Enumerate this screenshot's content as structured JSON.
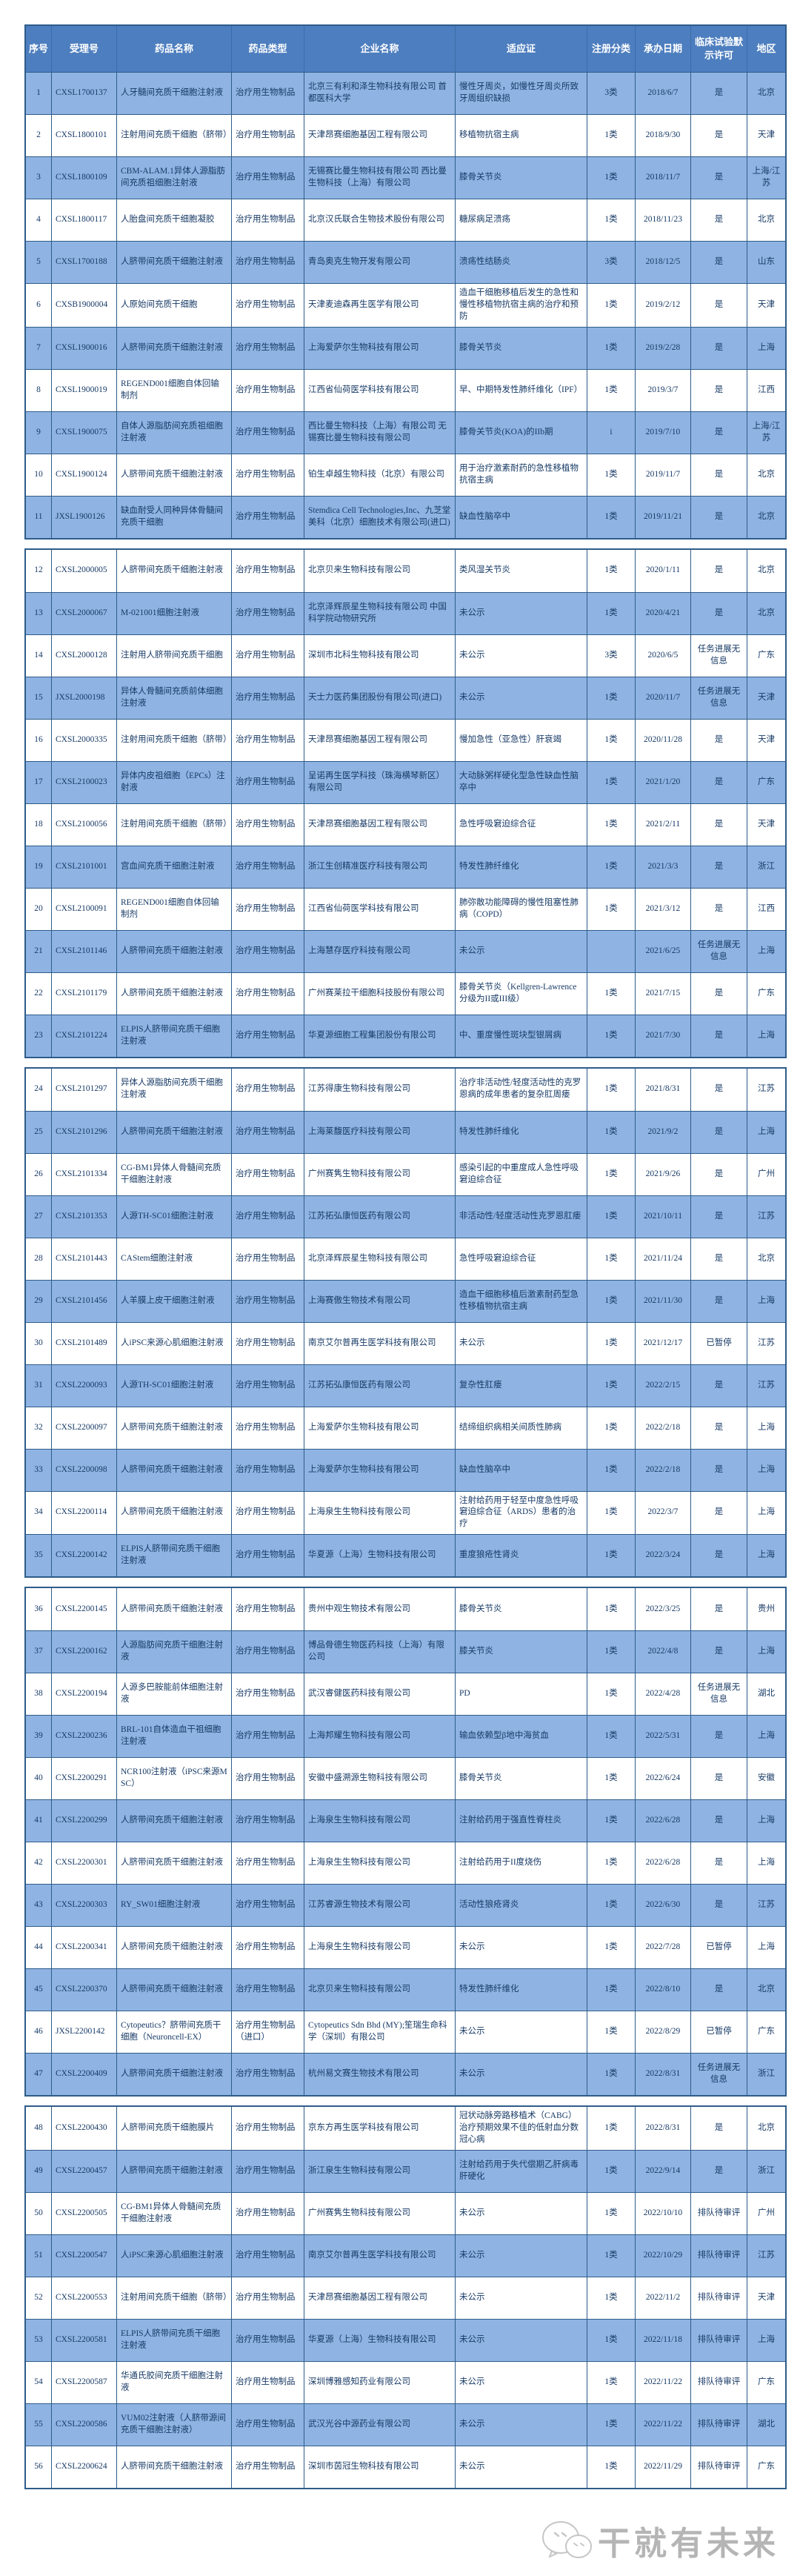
{
  "table": {
    "columns": [
      "序号",
      "受理号",
      "药品名称",
      "药品类型",
      "企业名称",
      "适应证",
      "注册分类",
      "承办日期",
      "临床试验默示许可",
      "地区"
    ],
    "page_breaks_after": [
      11,
      23,
      35,
      47
    ],
    "colors": {
      "header_bg": "#4d7ebf",
      "header_text": "#ffffff",
      "alt_row_bg": "#8fb4e3",
      "border": "#2e5c8a",
      "text": "#173a66"
    },
    "rows": [
      {
        "index": "1",
        "acceptance_no": "CXSL1700137",
        "drug_name": "人牙髓间充质干细胞注射液",
        "drug_type": "治疗用生物制品",
        "company": "北京三有利和泽生物科技有限公司 首都医科大学",
        "indication": "慢性牙周炎，如慢性牙周炎所致牙周组织缺损",
        "reg_class": "3类",
        "date": "2018/6/7",
        "permission": "是",
        "region": "北京"
      },
      {
        "index": "2",
        "acceptance_no": "CXSL1800101",
        "drug_name": "注射用间充质干细胞（脐带）",
        "drug_type": "治疗用生物制品",
        "company": "天津昂赛细胞基因工程有限公司",
        "indication": "移植物抗宿主病",
        "reg_class": "1类",
        "date": "2018/9/30",
        "permission": "是",
        "region": "天津"
      },
      {
        "index": "3",
        "acceptance_no": "CXSL1800109",
        "drug_name": "CBM-ALAM.1异体人源脂肪间充质祖细胞注射液",
        "drug_type": "治疗用生物制品",
        "company": "无锡赛比曼生物科技有限公司 西比曼生物科技（上海）有限公司",
        "indication": "膝骨关节炎",
        "reg_class": "1类",
        "date": "2018/11/7",
        "permission": "是",
        "region": "上海/江苏"
      },
      {
        "index": "4",
        "acceptance_no": "CXSL1800117",
        "drug_name": "人胎盘间充质干细胞凝胶",
        "drug_type": "治疗用生物制品",
        "company": "北京汉氏联合生物技术股份有限公司",
        "indication": "糖尿病足溃疡",
        "reg_class": "1类",
        "date": "2018/11/23",
        "permission": "是",
        "region": "北京"
      },
      {
        "index": "5",
        "acceptance_no": "CXSL1700188",
        "drug_name": "人脐带间充质干细胞注射液",
        "drug_type": "治疗用生物制品",
        "company": "青岛奥克生物开发有限公司",
        "indication": "溃疡性结肠炎",
        "reg_class": "3类",
        "date": "2018/12/5",
        "permission": "是",
        "region": "山东"
      },
      {
        "index": "6",
        "acceptance_no": "CXSB1900004",
        "drug_name": "人原始间充质干细胞",
        "drug_type": "治疗用生物制品",
        "company": "天津麦迪森再生医学有限公司",
        "indication": "造血干细胞移植后发生的急性和慢性移植物抗宿主病的治疗和预防",
        "reg_class": "1类",
        "date": "2019/2/12",
        "permission": "是",
        "region": "天津"
      },
      {
        "index": "7",
        "acceptance_no": "CXSL1900016",
        "drug_name": "人脐带间充质干细胞注射液",
        "drug_type": "治疗用生物制品",
        "company": "上海爱萨尔生物科技有限公司",
        "indication": "膝骨关节炎",
        "reg_class": "1类",
        "date": "2019/2/28",
        "permission": "是",
        "region": "上海"
      },
      {
        "index": "8",
        "acceptance_no": "CXSL1900019",
        "drug_name": "REGEND001细胞自体回输制剂",
        "drug_type": "治疗用生物制品",
        "company": "江西省仙荷医学科技有限公司",
        "indication": "早、中期特发性肺纤维化（IPF）",
        "reg_class": "1类",
        "date": "2019/3/7",
        "permission": "是",
        "region": "江西"
      },
      {
        "index": "9",
        "acceptance_no": "CXSL1900075",
        "drug_name": "自体人源脂肪间充质祖细胞注射液",
        "drug_type": "治疗用生物制品",
        "company": "西比曼生物科技（上海）有限公司 无锡赛比曼生物科技有限公司",
        "indication": "膝骨关节炎(KOA)的IIb期",
        "reg_class": "i",
        "date": "2019/7/10",
        "permission": "是",
        "region": "上海/江苏"
      },
      {
        "index": "10",
        "acceptance_no": "CXSL1900124",
        "drug_name": "人脐带间充质干细胞注射液",
        "drug_type": "治疗用生物制品",
        "company": "铂生卓越生物科技（北京）有限公司",
        "indication": "用于治疗激素耐药的急性移植物抗宿主病",
        "reg_class": "1类",
        "date": "2019/11/7",
        "permission": "是",
        "region": "北京"
      },
      {
        "index": "11",
        "acceptance_no": "JXSL1900126",
        "drug_name": "缺血耐受人同种异体骨髓间充质干细胞",
        "drug_type": "治疗用生物制品",
        "company": "Stemdica Cell Technologies,Inc、九芝堂美科（北京）细胞技术有限公司(进口)",
        "indication": "缺血性脑卒中",
        "reg_class": "1类",
        "date": "2019/11/21",
        "permission": "是",
        "region": "北京"
      },
      {
        "index": "12",
        "acceptance_no": "CXSL2000005",
        "drug_name": "人脐带间充质干细胞注射液",
        "drug_type": "治疗用生物制品",
        "company": "北京贝来生物科技有限公司",
        "indication": "类风湿关节炎",
        "reg_class": "1类",
        "date": "2020/1/11",
        "permission": "是",
        "region": "北京"
      },
      {
        "index": "13",
        "acceptance_no": "CXSL2000067",
        "drug_name": "M-021001细胞注射液",
        "drug_type": "治疗用生物制品",
        "company": "北京泽辉辰星生物科技有限公司 中国科学院动物研究所",
        "indication": "未公示",
        "reg_class": "1类",
        "date": "2020/4/21",
        "permission": "是",
        "region": "北京"
      },
      {
        "index": "14",
        "acceptance_no": "CXSL2000128",
        "drug_name": "注射用人脐带间充质干细胞",
        "drug_type": "治疗用生物制品",
        "company": "深圳市北科生物科技有限公司",
        "indication": "未公示",
        "reg_class": "3类",
        "date": "2020/6/5",
        "permission": "任务进展无信息",
        "region": "广东"
      },
      {
        "index": "15",
        "acceptance_no": "JXSL2000198",
        "drug_name": "异体人骨髓间充质前体细胞注射液",
        "drug_type": "治疗用生物制品",
        "company": "天士力医药集团股份有限公司(进口)",
        "indication": "未公示",
        "reg_class": "1类",
        "date": "2020/11/7",
        "permission": "任务进展无信息",
        "region": "天津"
      },
      {
        "index": "16",
        "acceptance_no": "CXSL2000335",
        "drug_name": "注射用间充质干细胞（脐带）",
        "drug_type": "治疗用生物制品",
        "company": "天津昂赛细胞基因工程有限公司",
        "indication": "慢加急性（亚急性）肝衰竭",
        "reg_class": "1类",
        "date": "2020/11/28",
        "permission": "是",
        "region": "天津"
      },
      {
        "index": "17",
        "acceptance_no": "CXSL2100023",
        "drug_name": "异体内皮祖细胞（EPCs）注射液",
        "drug_type": "治疗用生物制品",
        "company": "呈诺再生医学科技（珠海横琴新区）有限公司",
        "indication": "大动脉粥样硬化型急性缺血性脑卒中",
        "reg_class": "1类",
        "date": "2021/1/20",
        "permission": "是",
        "region": "广东"
      },
      {
        "index": "18",
        "acceptance_no": "CXSL2100056",
        "drug_name": "注射用间充质干细胞（脐带）",
        "drug_type": "治疗用生物制品",
        "company": "天津昂赛细胞基因工程有限公司",
        "indication": "急性呼吸窘迫综合征",
        "reg_class": "1类",
        "date": "2021/2/11",
        "permission": "是",
        "region": "天津"
      },
      {
        "index": "19",
        "acceptance_no": "CXSL2101001",
        "drug_name": "宫血间充质干细胞注射液",
        "drug_type": "治疗用生物制品",
        "company": "浙江生创精准医疗科技有限公司",
        "indication": "特发性肺纤维化",
        "reg_class": "1类",
        "date": "2021/3/3",
        "permission": "是",
        "region": "浙江"
      },
      {
        "index": "20",
        "acceptance_no": "CXSL2100091",
        "drug_name": "REGEND001细胞自体回输制剂",
        "drug_type": "治疗用生物制品",
        "company": "江西省仙荷医学科技有限公司",
        "indication": "肺弥散功能障碍的慢性阻塞性肺病（COPD）",
        "reg_class": "1类",
        "date": "2021/3/12",
        "permission": "是",
        "region": "江西"
      },
      {
        "index": "21",
        "acceptance_no": "CXSL2101146",
        "drug_name": "人脐带间充质干细胞注射液",
        "drug_type": "治疗用生物制品",
        "company": "上海慧存医疗科技有限公司",
        "indication": "未公示",
        "reg_class": "",
        "date": "2021/6/25",
        "permission": "任务进展无信息",
        "region": "上海"
      },
      {
        "index": "22",
        "acceptance_no": "CXSL2101179",
        "drug_name": "人脐带间充质干细胞注射液",
        "drug_type": "治疗用生物制品",
        "company": "广州赛莱拉干细胞科技股份有限公司",
        "indication": "膝骨关节炎（Kellgren-Lawrence分级为II或III级）",
        "reg_class": "1类",
        "date": "2021/7/15",
        "permission": "是",
        "region": "广东"
      },
      {
        "index": "23",
        "acceptance_no": "CXSL2101224",
        "drug_name": "ELPIS人脐带间充质干细胞注射液",
        "drug_type": "治疗用生物制品",
        "company": "华夏源细胞工程集团股份有限公司",
        "indication": "中、重度慢性斑块型银屑病",
        "reg_class": "1类",
        "date": "2021/7/30",
        "permission": "是",
        "region": "上海"
      },
      {
        "index": "24",
        "acceptance_no": "CXSL2101297",
        "drug_name": "异体人源脂肪间充质干细胞注射液",
        "drug_type": "治疗用生物制品",
        "company": "江苏得康生物科技有限公司",
        "indication": "治疗非活动性/轻度活动性的克罗恩病的成年患者的复杂肛周瘘",
        "reg_class": "1类",
        "date": "2021/8/31",
        "permission": "是",
        "region": "江苏"
      },
      {
        "index": "25",
        "acceptance_no": "CXSL2101296",
        "drug_name": "人脐带间充质干细胞注射液",
        "drug_type": "治疗用生物制品",
        "company": "上海莱馥医疗科技有限公司",
        "indication": "特发性肺纤维化",
        "reg_class": "1类",
        "date": "2021/9/2",
        "permission": "是",
        "region": "上海"
      },
      {
        "index": "26",
        "acceptance_no": "CXSL2101334",
        "drug_name": "CG-BM1异体人骨髓间充质干细胞注射液",
        "drug_type": "治疗用生物制品",
        "company": "广州赛隽生物科技有限公司",
        "indication": "感染引起的中重度成人急性呼吸窘迫综合征",
        "reg_class": "1类",
        "date": "2021/9/26",
        "permission": "是",
        "region": "广州"
      },
      {
        "index": "27",
        "acceptance_no": "CXSL2101353",
        "drug_name": "人源TH-SC01细胞注射液",
        "drug_type": "治疗用生物制品",
        "company": "江苏拓弘康恒医药有限公司",
        "indication": "非活动性/轻度活动性克罗恩肛瘘",
        "reg_class": "1类",
        "date": "2021/10/11",
        "permission": "是",
        "region": "江苏"
      },
      {
        "index": "28",
        "acceptance_no": "CXSL2101443",
        "drug_name": "CAStem细胞注射液",
        "drug_type": "治疗用生物制品",
        "company": "北京泽辉辰星生物科技有限公司",
        "indication": "急性呼吸窘迫综合征",
        "reg_class": "1类",
        "date": "2021/11/24",
        "permission": "是",
        "region": "北京"
      },
      {
        "index": "29",
        "acceptance_no": "CXSL2101456",
        "drug_name": "人羊膜上皮干细胞注射液",
        "drug_type": "治疗用生物制品",
        "company": "上海赛傲生物技术有限公司",
        "indication": "造血干细胞移植后激素耐药型急性移植物抗宿主病",
        "reg_class": "1类",
        "date": "2021/11/30",
        "permission": "是",
        "region": "上海"
      },
      {
        "index": "30",
        "acceptance_no": "CXSL2101489",
        "drug_name": "人iPSC来源心肌细胞注射液",
        "drug_type": "治疗用生物制品",
        "company": "南京艾尔普再生医学科技有限公司",
        "indication": "未公示",
        "reg_class": "1类",
        "date": "2021/12/17",
        "permission": "已暂停",
        "region": "江苏"
      },
      {
        "index": "31",
        "acceptance_no": "CXSL2200093",
        "drug_name": "人源TH-SC01细胞注射液",
        "drug_type": "治疗用生物制品",
        "company": "江苏拓弘康恒医药有限公司",
        "indication": "复杂性肛瘘",
        "reg_class": "1类",
        "date": "2022/2/15",
        "permission": "是",
        "region": "江苏"
      },
      {
        "index": "32",
        "acceptance_no": "CXSL2200097",
        "drug_name": "人脐带间充质干细胞注射液",
        "drug_type": "治疗用生物制品",
        "company": "上海爱萨尔生物科技有限公司",
        "indication": "结缔组织病相关间质性肺病",
        "reg_class": "1类",
        "date": "2022/2/18",
        "permission": "是",
        "region": "上海"
      },
      {
        "index": "33",
        "acceptance_no": "CXSL2200098",
        "drug_name": "人脐带间充质干细胞注射液",
        "drug_type": "治疗用生物制品",
        "company": "上海爱萨尔生物科技有限公司",
        "indication": "缺血性脑卒中",
        "reg_class": "1类",
        "date": "2022/2/18",
        "permission": "是",
        "region": "上海"
      },
      {
        "index": "34",
        "acceptance_no": "CXSL2200114",
        "drug_name": "人脐带间充质干细胞注射液",
        "drug_type": "治疗用生物制品",
        "company": "上海泉生生物科技有限公司",
        "indication": "注射给药用于轻至中度急性呼吸窘迫综合征（ARDS）患者的治疗",
        "reg_class": "1类",
        "date": "2022/3/7",
        "permission": "是",
        "region": "上海"
      },
      {
        "index": "35",
        "acceptance_no": "CXSL2200142",
        "drug_name": "ELPIS人脐带间充质干细胞注射液",
        "drug_type": "治疗用生物制品",
        "company": "华夏源（上海）生物科技有限公司",
        "indication": "重度狼疮性肾炎",
        "reg_class": "1类",
        "date": "2022/3/24",
        "permission": "是",
        "region": "上海"
      },
      {
        "index": "36",
        "acceptance_no": "CXSL2200145",
        "drug_name": "人脐带间充质干细胞注射液",
        "drug_type": "治疗用生物制品",
        "company": "贵州中观生物技术有限公司",
        "indication": "膝骨关节炎",
        "reg_class": "1类",
        "date": "2022/3/25",
        "permission": "是",
        "region": "贵州"
      },
      {
        "index": "37",
        "acceptance_no": "CXSL2200162",
        "drug_name": "人源脂肪间充质干细胞注射液",
        "drug_type": "治疗用生物制品",
        "company": "博品骨德生物医药科技（上海）有限公司",
        "indication": "膝关节炎",
        "reg_class": "1类",
        "date": "2022/4/8",
        "permission": "是",
        "region": "上海"
      },
      {
        "index": "38",
        "acceptance_no": "CXSL2200194",
        "drug_name": "人源多巴胺能前体细胞注射液",
        "drug_type": "治疗用生物制品",
        "company": "武汉睿健医药科技有限公司",
        "indication": "PD",
        "reg_class": "1类",
        "date": "2022/4/28",
        "permission": "任务进展无信息",
        "region": "湖北"
      },
      {
        "index": "39",
        "acceptance_no": "CXSL2200236",
        "drug_name": "BRL-101自体造血干祖细胞注射液",
        "drug_type": "治疗用生物制品",
        "company": "上海邦耀生物科技有限公司",
        "indication": "输血依赖型β地中海贫血",
        "reg_class": "1类",
        "date": "2022/5/31",
        "permission": "是",
        "region": "上海"
      },
      {
        "index": "40",
        "acceptance_no": "CXSL2200291",
        "drug_name": "NCR100注射液（iPSC来源MSC）",
        "drug_type": "治疗用生物制品",
        "company": "安徽中盛溯源生物科技有限公司",
        "indication": "膝骨关节炎",
        "reg_class": "1类",
        "date": "2022/6/24",
        "permission": "是",
        "region": "安徽"
      },
      {
        "index": "41",
        "acceptance_no": "CXSL2200299",
        "drug_name": "人脐带间充质干细胞注射液",
        "drug_type": "治疗用生物制品",
        "company": "上海泉生生物科技有限公司",
        "indication": "注射给药用于强直性脊柱炎",
        "reg_class": "1类",
        "date": "2022/6/28",
        "permission": "是",
        "region": "上海"
      },
      {
        "index": "42",
        "acceptance_no": "CXSL2200301",
        "drug_name": "人脐带间充质干细胞注射液",
        "drug_type": "治疗用生物制品",
        "company": "上海泉生生物科技有限公司",
        "indication": "注射给药用于II度烧伤",
        "reg_class": "1类",
        "date": "2022/6/28",
        "permission": "是",
        "region": "上海"
      },
      {
        "index": "43",
        "acceptance_no": "CXSL2200303",
        "drug_name": "RY_SW01细胞注射液",
        "drug_type": "治疗用生物制品",
        "company": "江苏睿源生物技术有限公司",
        "indication": "活动性狼疮肾炎",
        "reg_class": "1类",
        "date": "2022/6/30",
        "permission": "是",
        "region": "江苏"
      },
      {
        "index": "44",
        "acceptance_no": "CXSL2200341",
        "drug_name": "人脐带间充质干细胞注射液",
        "drug_type": "治疗用生物制品",
        "company": "上海泉生生物科技有限公司",
        "indication": "未公示",
        "reg_class": "1类",
        "date": "2022/7/28",
        "permission": "已暂停",
        "region": "上海"
      },
      {
        "index": "45",
        "acceptance_no": "CXSL2200370",
        "drug_name": "人脐带间充质干细胞注射液",
        "drug_type": "治疗用生物制品",
        "company": "北京贝来生物科技有限公司",
        "indication": "特发性肺纤维化",
        "reg_class": "1类",
        "date": "2022/8/10",
        "permission": "是",
        "region": "北京"
      },
      {
        "index": "46",
        "acceptance_no": "JXSL2200142",
        "drug_name": "Cytopeutics？脐带间充质干细胞（Neuroncell-EX）",
        "drug_type": "治疗用生物制品（进口）",
        "company": "Cytopeutics Sdn Bhd (MY);笙瑞生命科学（深圳）有限公司",
        "indication": "未公示",
        "reg_class": "1类",
        "date": "2022/8/29",
        "permission": "已暂停",
        "region": "广东"
      },
      {
        "index": "47",
        "acceptance_no": "CXSL2200409",
        "drug_name": "人脐带间充质干细胞注射液",
        "drug_type": "治疗用生物制品",
        "company": "杭州易文赛生物技术有限公司",
        "indication": "未公示",
        "reg_class": "1类",
        "date": "2022/8/31",
        "permission": "任务进展无信息",
        "region": "浙江"
      },
      {
        "index": "48",
        "acceptance_no": "CXSL2200430",
        "drug_name": "人脐带间充质干细胞膜片",
        "drug_type": "治疗用生物制品",
        "company": "京东方再生医学科技有限公司",
        "indication": "冠状动脉旁路移植术（CABG）治疗预期效果不佳的低射血分数冠心病",
        "reg_class": "1类",
        "date": "2022/8/31",
        "permission": "是",
        "region": "北京"
      },
      {
        "index": "49",
        "acceptance_no": "CXSL2200457",
        "drug_name": "人脐带间充质干细胞注射液",
        "drug_type": "治疗用生物制品",
        "company": "浙江泉生生物科技有限公司",
        "indication": "注射给药用于失代偿期乙肝病毒肝硬化",
        "reg_class": "1类",
        "date": "2022/9/14",
        "permission": "是",
        "region": "浙江"
      },
      {
        "index": "50",
        "acceptance_no": "CXSL2200505",
        "drug_name": "CG-BM1异体人骨髓间充质干细胞注射液",
        "drug_type": "治疗用生物制品",
        "company": "广州赛隽生物科技有限公司",
        "indication": "未公示",
        "reg_class": "1类",
        "date": "2022/10/10",
        "permission": "排队待审评",
        "region": "广州"
      },
      {
        "index": "51",
        "acceptance_no": "CXSL2200547",
        "drug_name": "人iPSC来源心肌细胞注射液",
        "drug_type": "治疗用生物制品",
        "company": "南京艾尔普再生医学科技有限公司",
        "indication": "未公示",
        "reg_class": "1类",
        "date": "2022/10/29",
        "permission": "排队待审评",
        "region": "江苏"
      },
      {
        "index": "52",
        "acceptance_no": "CXSL2200553",
        "drug_name": "注射用间充质干细胞（脐带）",
        "drug_type": "治疗用生物制品",
        "company": "天津昂赛细胞基因工程有限公司",
        "indication": "未公示",
        "reg_class": "1类",
        "date": "2022/11/2",
        "permission": "排队待审评",
        "region": "天津"
      },
      {
        "index": "53",
        "acceptance_no": "CXSL2200581",
        "drug_name": "ELPIS人脐带间充质干细胞注射液",
        "drug_type": "治疗用生物制品",
        "company": "华夏源（上海）生物科技有限公司",
        "indication": "未公示",
        "reg_class": "1类",
        "date": "2022/11/18",
        "permission": "排队待审评",
        "region": "上海"
      },
      {
        "index": "54",
        "acceptance_no": "CXSL2200587",
        "drug_name": "华通氏胶间充质干细胞注射液",
        "drug_type": "治疗用生物制品",
        "company": "深圳博雅感知药业有限公司",
        "indication": "未公示",
        "reg_class": "1类",
        "date": "2022/11/22",
        "permission": "排队待审评",
        "region": "广东"
      },
      {
        "index": "55",
        "acceptance_no": "CXSL2200586",
        "drug_name": "VUM02注射液（人脐带源间充质干细胞注射液）",
        "drug_type": "治疗用生物制品",
        "company": "武汉光谷中源药业有限公司",
        "indication": "未公示",
        "reg_class": "1类",
        "date": "2022/11/22",
        "permission": "排队待审评",
        "region": "湖北"
      },
      {
        "index": "56",
        "acceptance_no": "CXSL2200624",
        "drug_name": "人脐带间充质干细胞注射液",
        "drug_type": "治疗用生物制品",
        "company": "深圳市茵冠生物科技有限公司",
        "indication": "未公示",
        "reg_class": "1类",
        "date": "2022/11/29",
        "permission": "排队待审评",
        "region": "广东"
      }
    ]
  },
  "watermark": {
    "text": "干就有未来",
    "logo": "wechat-bubbles-icon"
  }
}
